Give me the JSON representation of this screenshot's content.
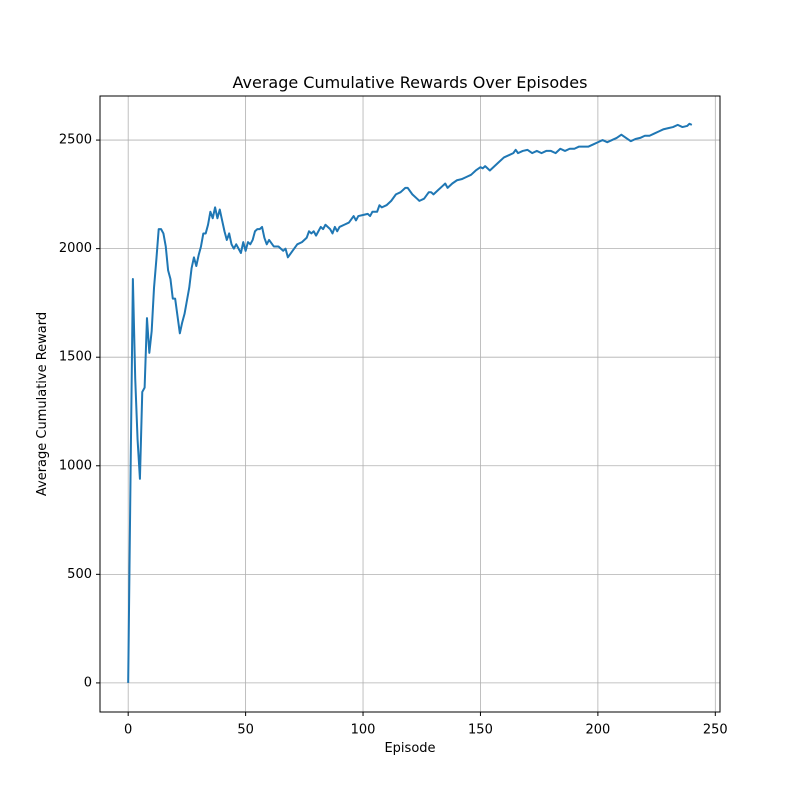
{
  "chart_data": {
    "type": "line",
    "title": "Average Cumulative Rewards Over Episodes",
    "x_label": "Episode",
    "y_label": "Average Cumulative Reward",
    "x": [
      0,
      1,
      2,
      3,
      4,
      5,
      6,
      7,
      8,
      9,
      10,
      11,
      12,
      13,
      14,
      15,
      16,
      17,
      18,
      19,
      20,
      21,
      22,
      23,
      24,
      25,
      26,
      27,
      28,
      29,
      30,
      31,
      32,
      33,
      34,
      35,
      36,
      37,
      38,
      39,
      40,
      41,
      42,
      43,
      44,
      45,
      46,
      47,
      48,
      49,
      50,
      51,
      52,
      53,
      54,
      55,
      56,
      57,
      58,
      59,
      60,
      62,
      64,
      66,
      67,
      68,
      70,
      72,
      74,
      76,
      77,
      78,
      79,
      80,
      81,
      82,
      83,
      84,
      86,
      87,
      88,
      89,
      90,
      92,
      94,
      96,
      97,
      98,
      100,
      102,
      103,
      104,
      106,
      107,
      108,
      110,
      112,
      114,
      116,
      118,
      119,
      121,
      123,
      124,
      126,
      128,
      129,
      130,
      132,
      134,
      135,
      136,
      138,
      140,
      142,
      144,
      146,
      148,
      150,
      151,
      152,
      154,
      156,
      158,
      160,
      162,
      164,
      165,
      166,
      168,
      170,
      172,
      174,
      176,
      178,
      180,
      182,
      184,
      186,
      188,
      190,
      192,
      194,
      196,
      198,
      200,
      202,
      204,
      206,
      208,
      210,
      212,
      214,
      216,
      218,
      220,
      222,
      224,
      226,
      228,
      230,
      232,
      234,
      236,
      238,
      239,
      240
    ],
    "values": [
      0,
      950,
      1860,
      1400,
      1120,
      940,
      1340,
      1360,
      1680,
      1520,
      1620,
      1820,
      1950,
      2090,
      2090,
      2070,
      2010,
      1900,
      1860,
      1770,
      1770,
      1690,
      1610,
      1660,
      1700,
      1760,
      1820,
      1910,
      1960,
      1920,
      1970,
      2010,
      2070,
      2070,
      2110,
      2170,
      2140,
      2190,
      2140,
      2180,
      2130,
      2080,
      2040,
      2070,
      2020,
      2000,
      2020,
      2000,
      1980,
      2030,
      1990,
      2030,
      2020,
      2040,
      2080,
      2090,
      2090,
      2100,
      2050,
      2020,
      2040,
      2010,
      2010,
      1990,
      2000,
      1960,
      1990,
      2020,
      2030,
      2050,
      2080,
      2070,
      2080,
      2060,
      2080,
      2100,
      2090,
      2110,
      2090,
      2070,
      2100,
      2080,
      2100,
      2110,
      2120,
      2150,
      2130,
      2150,
      2155,
      2160,
      2150,
      2170,
      2170,
      2200,
      2190,
      2200,
      2220,
      2250,
      2260,
      2280,
      2280,
      2250,
      2230,
      2220,
      2230,
      2260,
      2260,
      2250,
      2270,
      2290,
      2300,
      2280,
      2300,
      2315,
      2320,
      2330,
      2340,
      2360,
      2375,
      2370,
      2380,
      2360,
      2380,
      2400,
      2420,
      2430,
      2440,
      2455,
      2440,
      2450,
      2455,
      2440,
      2450,
      2440,
      2450,
      2450,
      2440,
      2460,
      2450,
      2460,
      2460,
      2470,
      2470,
      2470,
      2480,
      2490,
      2500,
      2490,
      2500,
      2510,
      2525,
      2510,
      2495,
      2505,
      2510,
      2520,
      2520,
      2530,
      2540,
      2550,
      2555,
      2560,
      2570,
      2560,
      2565,
      2575,
      2570
    ],
    "color": "#1f77b4",
    "xlim": [
      -12,
      252
    ],
    "xticks": [
      0,
      50,
      100,
      150,
      200,
      250
    ],
    "ylim": [
      -134,
      2703
    ],
    "yticks": [
      0,
      500,
      1000,
      1500,
      2000,
      2500
    ],
    "grid": true
  }
}
